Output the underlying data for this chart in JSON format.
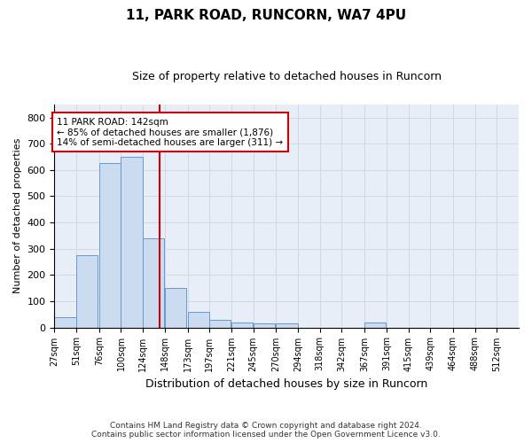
{
  "title_line1": "11, PARK ROAD, RUNCORN, WA7 4PU",
  "title_line2": "Size of property relative to detached houses in Runcorn",
  "xlabel": "Distribution of detached houses by size in Runcorn",
  "ylabel": "Number of detached properties",
  "bin_labels": [
    "27sqm",
    "51sqm",
    "76sqm",
    "100sqm",
    "124sqm",
    "148sqm",
    "173sqm",
    "197sqm",
    "221sqm",
    "245sqm",
    "270sqm",
    "294sqm",
    "318sqm",
    "342sqm",
    "367sqm",
    "391sqm",
    "415sqm",
    "439sqm",
    "464sqm",
    "488sqm",
    "512sqm"
  ],
  "bin_edges": [
    27,
    51,
    76,
    100,
    124,
    148,
    173,
    197,
    221,
    245,
    270,
    294,
    318,
    342,
    367,
    391,
    415,
    439,
    464,
    488,
    512
  ],
  "bar_heights": [
    40,
    275,
    625,
    650,
    340,
    150,
    60,
    30,
    20,
    15,
    15,
    0,
    0,
    0,
    20,
    0,
    0,
    0,
    0,
    0,
    0
  ],
  "bar_color": "#ccdcf0",
  "bar_edge_color": "#6699cc",
  "property_value": 142,
  "annotation_line1": "11 PARK ROAD: 142sqm",
  "annotation_line2": "← 85% of detached houses are smaller (1,876)",
  "annotation_line3": "14% of semi-detached houses are larger (311) →",
  "vline_color": "#cc0000",
  "annotation_box_color": "#ffffff",
  "annotation_box_edge": "#cc0000",
  "ylim": [
    0,
    850
  ],
  "yticks": [
    0,
    100,
    200,
    300,
    400,
    500,
    600,
    700,
    800
  ],
  "grid_color": "#d0d8e8",
  "background_color": "#e8eef8",
  "footer_line1": "Contains HM Land Registry data © Crown copyright and database right 2024.",
  "footer_line2": "Contains public sector information licensed under the Open Government Licence v3.0."
}
